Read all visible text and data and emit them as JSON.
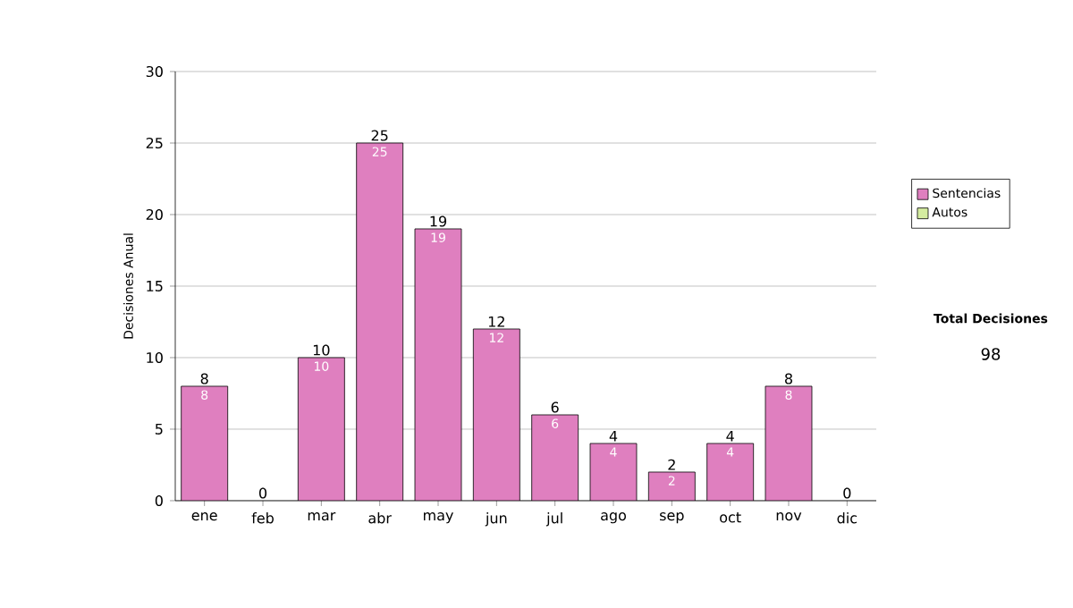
{
  "chart_data": {
    "type": "bar",
    "stacked": true,
    "ylabel": "Decisiones Anual",
    "categories": [
      "ene",
      "feb",
      "mar",
      "abr",
      "may",
      "jun",
      "jul",
      "ago",
      "sep",
      "oct",
      "nov",
      "dic"
    ],
    "series": [
      {
        "name": "Sentencias",
        "color": "#df7fbf",
        "values": [
          8,
          0,
          10,
          25,
          19,
          12,
          6,
          4,
          2,
          4,
          8,
          0
        ],
        "value_labels": [
          "8",
          null,
          "10",
          "25",
          "19",
          "12",
          "6",
          "4",
          "2",
          "4",
          "8",
          null
        ]
      },
      {
        "name": "Autos",
        "color": "#d4eca0",
        "values": [
          0,
          0,
          0,
          0,
          0,
          0,
          0,
          0,
          0,
          0,
          0,
          0
        ]
      }
    ],
    "totals": [
      "8",
      "0",
      "10",
      "25",
      "19",
      "12",
      "6",
      "4",
      "2",
      "4",
      "8",
      "0"
    ],
    "ylim": [
      0,
      30
    ],
    "yticks": [
      0,
      5,
      10,
      15,
      20,
      25,
      30
    ],
    "grid": "y",
    "legend": "right",
    "annotations": [
      "Total Decisiones",
      "98"
    ]
  }
}
